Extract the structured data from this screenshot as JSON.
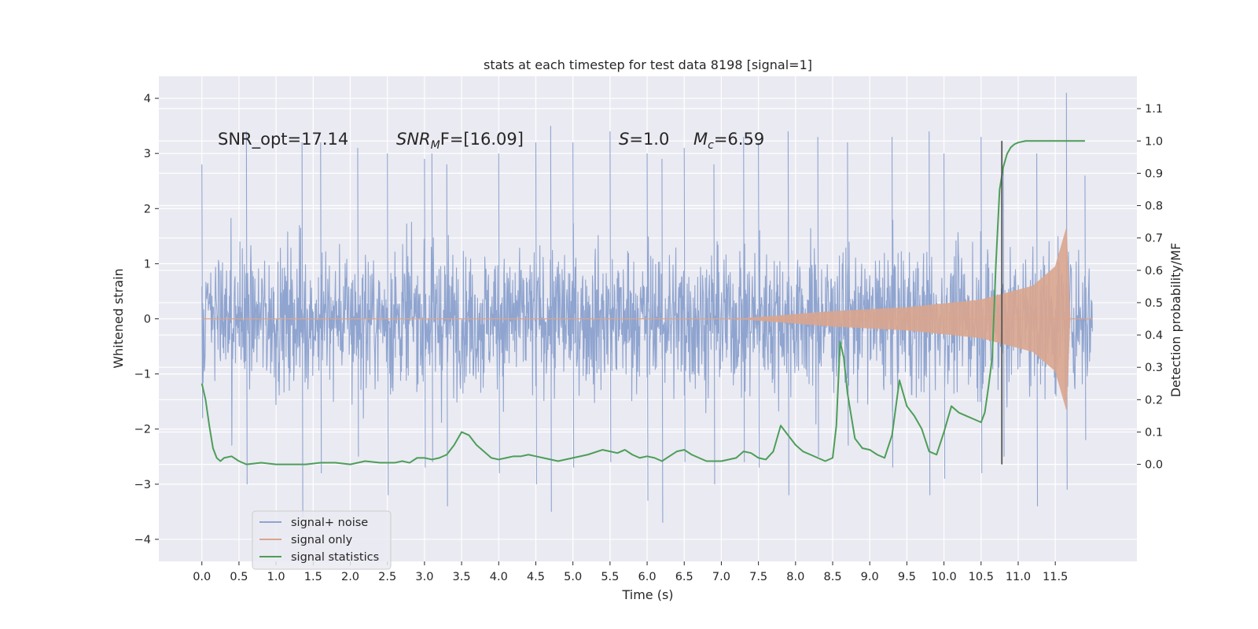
{
  "chart_data": {
    "type": "line",
    "title": "stats at each timestep for test data 8198 [signal=1]",
    "xlabel": "Time (s)",
    "ylabel": "Whitened strain",
    "ylabel_right": "Detection probability/MF",
    "xlim": [
      -0.58,
      12.6
    ],
    "ylim": [
      -4.4,
      4.4
    ],
    "ylim_right": [
      -0.3,
      1.2
    ],
    "x_ticks": [
      "0.0",
      "0.5",
      "1.0",
      "1.5",
      "2.0",
      "2.5",
      "3.0",
      "3.5",
      "4.0",
      "4.5",
      "5.0",
      "5.5",
      "6.0",
      "6.5",
      "7.0",
      "7.5",
      "8.0",
      "8.5",
      "9.0",
      "9.5",
      "10.0",
      "10.5",
      "11.0",
      "11.5"
    ],
    "y_ticks": [
      "4",
      "3",
      "2",
      "1",
      "0",
      "−1",
      "−2",
      "−3",
      "−4"
    ],
    "y_right_ticks": [
      "1.1",
      "1.0",
      "0.9",
      "0.8",
      "0.7",
      "0.6",
      "0.5",
      "0.4",
      "0.3",
      "0.2",
      "0.1",
      "0.0"
    ],
    "grid": true,
    "annotations": {
      "snr_opt": "SNR_opt=17.14",
      "snr_mf_sym": "SNR",
      "snr_mf_sub": "M",
      "snr_mf_rest": "F=[16.09]",
      "s_sym": "S",
      "s_rest": "=1.0",
      "mc_sym": "M",
      "mc_sub": "c",
      "mc_rest": "=6.59"
    },
    "vertical_line_x": 10.78,
    "series": [
      {
        "name": "signal+ noise",
        "color": "#8fa4cf",
        "axis": "left",
        "x_range": [
          0.0,
          12.0
        ],
        "envelope_peaks": [
          [
            0.0,
            2.8,
            -1.8
          ],
          [
            0.6,
            3.4,
            -3.0
          ],
          [
            1.35,
            3.2,
            -3.6
          ],
          [
            1.6,
            3.2,
            -2.8
          ],
          [
            2.1,
            3.1,
            -2.5
          ],
          [
            2.5,
            3.0,
            -3.2
          ],
          [
            3.0,
            2.9,
            -2.7
          ],
          [
            3.1,
            3.0,
            -2.6
          ],
          [
            3.3,
            2.8,
            -3.4
          ],
          [
            4.0,
            3.0,
            -2.8
          ],
          [
            4.5,
            3.2,
            -3.0
          ],
          [
            4.7,
            3.5,
            -3.5
          ],
          [
            5.0,
            3.2,
            -2.7
          ],
          [
            5.5,
            3.4,
            -2.6
          ],
          [
            6.0,
            3.0,
            -3.3
          ],
          [
            6.2,
            2.9,
            -3.7
          ],
          [
            6.5,
            3.1,
            -2.6
          ],
          [
            6.9,
            2.8,
            -3.0
          ],
          [
            7.3,
            3.3,
            -2.6
          ],
          [
            7.5,
            3.2,
            -2.7
          ],
          [
            7.9,
            3.4,
            -3.2
          ],
          [
            8.3,
            3.3,
            -2.5
          ],
          [
            8.7,
            3.2,
            -2.3
          ],
          [
            9.3,
            3.3,
            -2.7
          ],
          [
            9.8,
            3.4,
            -3.2
          ],
          [
            10.0,
            3.0,
            -2.9
          ],
          [
            10.5,
            3.3,
            -2.8
          ],
          [
            10.8,
            2.7,
            -2.5
          ],
          [
            11.25,
            3.0,
            -3.4
          ],
          [
            11.65,
            4.1,
            -3.1
          ],
          [
            11.9,
            2.6,
            -2.2
          ]
        ]
      },
      {
        "name": "signal only",
        "color": "#d9a58e",
        "axis": "left",
        "x_range": [
          7.2,
          11.7
        ],
        "amplitude": [
          [
            7.2,
            0.0
          ],
          [
            8.5,
            0.14
          ],
          [
            9.5,
            0.21
          ],
          [
            10.5,
            0.35
          ],
          [
            11.2,
            0.6
          ],
          [
            11.5,
            0.95
          ],
          [
            11.65,
            1.65
          ],
          [
            11.7,
            0.0
          ]
        ]
      },
      {
        "name": "signal statistics",
        "color": "#4c9e58",
        "axis": "right",
        "x": [
          0.0,
          0.05,
          0.1,
          0.15,
          0.2,
          0.25,
          0.3,
          0.4,
          0.5,
          0.6,
          0.8,
          1.0,
          1.2,
          1.4,
          1.6,
          1.8,
          2.0,
          2.2,
          2.4,
          2.6,
          2.7,
          2.8,
          2.9,
          3.0,
          3.1,
          3.2,
          3.3,
          3.4,
          3.5,
          3.6,
          3.7,
          3.8,
          3.9,
          4.0,
          4.1,
          4.2,
          4.3,
          4.4,
          4.5,
          4.6,
          4.8,
          5.0,
          5.2,
          5.4,
          5.5,
          5.6,
          5.7,
          5.8,
          5.9,
          6.0,
          6.1,
          6.2,
          6.3,
          6.4,
          6.5,
          6.6,
          6.7,
          6.8,
          7.0,
          7.2,
          7.3,
          7.4,
          7.5,
          7.6,
          7.7,
          7.8,
          7.9,
          8.0,
          8.1,
          8.2,
          8.3,
          8.4,
          8.5,
          8.55,
          8.6,
          8.65,
          8.7,
          8.8,
          8.9,
          9.0,
          9.1,
          9.2,
          9.3,
          9.4,
          9.5,
          9.6,
          9.7,
          9.8,
          9.9,
          10.0,
          10.1,
          10.2,
          10.3,
          10.4,
          10.5,
          10.55,
          10.6,
          10.65,
          10.7,
          10.75,
          10.8,
          10.85,
          10.9,
          10.95,
          11.0,
          11.1,
          11.2,
          11.4,
          11.6,
          11.8,
          11.9
        ],
        "y": [
          0.25,
          0.2,
          0.12,
          0.05,
          0.02,
          0.01,
          0.02,
          0.025,
          0.01,
          0.0,
          0.005,
          0.0,
          0.0,
          0.0,
          0.005,
          0.005,
          0.0,
          0.01,
          0.005,
          0.005,
          0.01,
          0.005,
          0.02,
          0.02,
          0.015,
          0.02,
          0.03,
          0.06,
          0.1,
          0.09,
          0.06,
          0.04,
          0.02,
          0.015,
          0.02,
          0.025,
          0.025,
          0.03,
          0.025,
          0.02,
          0.01,
          0.02,
          0.03,
          0.045,
          0.04,
          0.035,
          0.045,
          0.03,
          0.02,
          0.025,
          0.02,
          0.01,
          0.025,
          0.04,
          0.045,
          0.03,
          0.02,
          0.01,
          0.01,
          0.02,
          0.04,
          0.035,
          0.02,
          0.015,
          0.04,
          0.12,
          0.09,
          0.06,
          0.04,
          0.03,
          0.02,
          0.01,
          0.02,
          0.12,
          0.38,
          0.33,
          0.22,
          0.08,
          0.05,
          0.045,
          0.03,
          0.02,
          0.09,
          0.26,
          0.18,
          0.15,
          0.11,
          0.04,
          0.03,
          0.1,
          0.18,
          0.16,
          0.15,
          0.14,
          0.13,
          0.16,
          0.24,
          0.33,
          0.62,
          0.85,
          0.92,
          0.96,
          0.98,
          0.99,
          0.995,
          1.0,
          1.0,
          1.0,
          1.0,
          1.0,
          1.0
        ]
      }
    ],
    "legend": {
      "placement": "lower-left",
      "entries": [
        "signal+ noise",
        "signal only",
        "signal statistics"
      ]
    }
  }
}
